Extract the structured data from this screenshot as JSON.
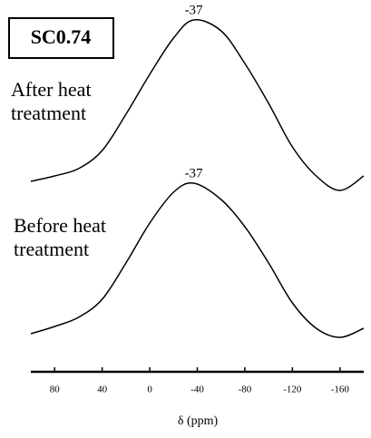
{
  "chart_data": {
    "type": "line",
    "title": "SC0.74",
    "xlabel": "δ (ppm)",
    "x": [
      100,
      80,
      60,
      40,
      20,
      0,
      -20,
      -37,
      -60,
      -80,
      -100,
      -120,
      -140,
      -160,
      -180
    ],
    "series": [
      {
        "name": "After heat treatment",
        "color": "#000000",
        "peak": -37,
        "values": [
          52.5,
          54,
          56,
          61,
          71,
          82,
          92,
          97,
          94,
          85,
          74,
          62,
          54,
          50,
          54
        ]
      },
      {
        "name": "Before heat treatment",
        "color": "#000000",
        "peak": -37,
        "values": [
          10.5,
          12.5,
          15,
          20,
          30,
          41,
          49.5,
          52,
          47.5,
          40,
          30,
          19,
          12,
          9.5,
          12
        ]
      }
    ],
    "xlim": [
      100,
      -180
    ],
    "xticks": [
      80,
      40,
      0,
      -40,
      -80,
      -120,
      -160
    ],
    "ylim": [
      0,
      100
    ]
  }
}
